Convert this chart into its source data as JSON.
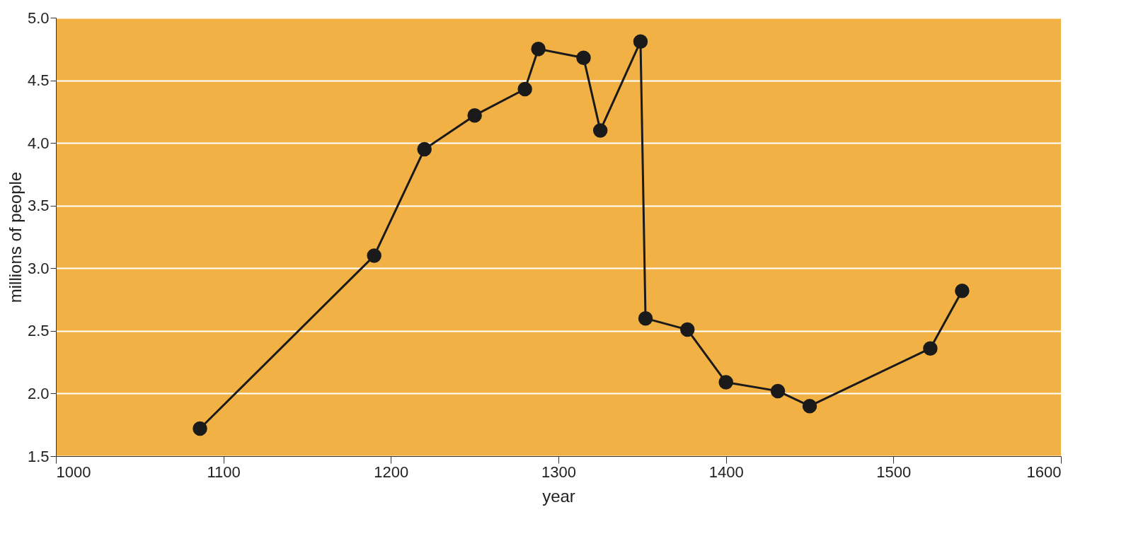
{
  "chart_data": {
    "type": "line",
    "xlabel": "year",
    "ylabel": "millions of people",
    "x": [
      1086,
      1190,
      1220,
      1250,
      1280,
      1288,
      1315,
      1325,
      1349,
      1352,
      1377,
      1400,
      1431,
      1450,
      1522,
      1541
    ],
    "series": [
      {
        "color": "#1a1a1a",
        "values": [
          1.72,
          3.1,
          3.95,
          4.22,
          4.43,
          4.75,
          4.68,
          4.1,
          4.81,
          2.6,
          2.51,
          2.09,
          2.02,
          1.9,
          2.36,
          2.82
        ]
      }
    ],
    "xlim": [
      1000,
      1600
    ],
    "xticks": [
      1000,
      1100,
      1200,
      1300,
      1400,
      1500,
      1600
    ],
    "ylim": [
      1.5,
      5.0
    ],
    "yticks": [
      1.5,
      {
        "value": 2,
        "label": "2.0"
      },
      2.5,
      {
        "value": 3,
        "label": "3.0"
      },
      3.5,
      {
        "value": 4,
        "label": "4.0"
      },
      4.5,
      {
        "value": 5,
        "label": "5.0"
      }
    ],
    "grid": "y",
    "marker": "circle",
    "line_style": "solid",
    "legend": false
  }
}
